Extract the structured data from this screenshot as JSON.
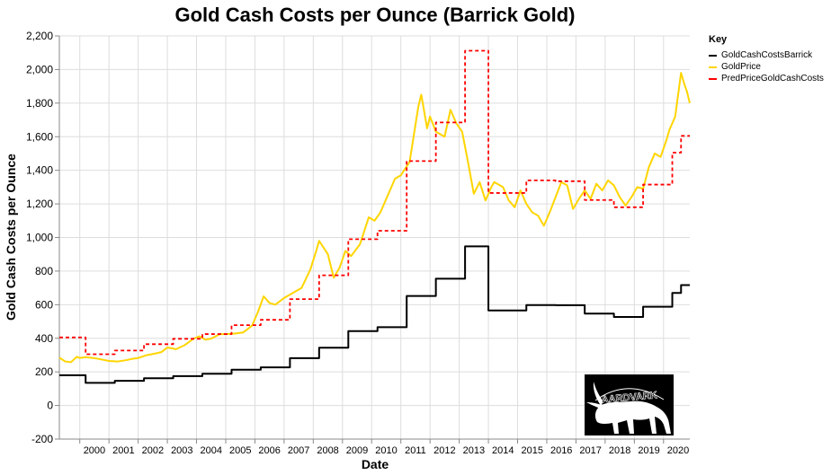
{
  "chart_data": {
    "type": "line",
    "title": "Gold Cash Costs per Ounce (Barrick Gold)",
    "xlabel": "Date",
    "ylabel": "Gold Cash Costs per Ounce",
    "ylim": [
      -200,
      2200
    ],
    "xlim": [
      1999.3,
      2020.9
    ],
    "x_ticks": [
      "2000",
      "2001",
      "2002",
      "2003",
      "2004",
      "2005",
      "2006",
      "2007",
      "2008",
      "2009",
      "2010",
      "2011",
      "2012",
      "2013",
      "2014",
      "2015",
      "2016",
      "2017",
      "2018",
      "2019",
      "2020"
    ],
    "y_ticks": [
      -200,
      0,
      200,
      400,
      600,
      800,
      1000,
      1200,
      1400,
      1600,
      1800,
      2000,
      2200
    ],
    "y_tick_labels": [
      "-200",
      "0",
      "200",
      "400",
      "600",
      "800",
      "1,000",
      "1,200",
      "1,400",
      "1,600",
      "1,800",
      "2,000",
      "2,200"
    ],
    "grid": true,
    "legend": {
      "title": "Key",
      "position": "right"
    },
    "series": [
      {
        "name": "GoldCashCostsBarrick",
        "color": "#000000",
        "style": "step",
        "points": [
          [
            1999.3,
            180
          ],
          [
            2000.2,
            135
          ],
          [
            2001.2,
            147
          ],
          [
            2002.2,
            162
          ],
          [
            2003.2,
            175
          ],
          [
            2004.2,
            189
          ],
          [
            2005.2,
            213
          ],
          [
            2006.2,
            227
          ],
          [
            2007.2,
            282
          ],
          [
            2008.2,
            344
          ],
          [
            2009.2,
            443
          ],
          [
            2010.2,
            466
          ],
          [
            2011.2,
            652
          ],
          [
            2012.2,
            755
          ],
          [
            2013.2,
            947
          ],
          [
            2014.0,
            566
          ],
          [
            2015.3,
            598
          ],
          [
            2016.3,
            597
          ],
          [
            2017.3,
            547
          ],
          [
            2018.3,
            527
          ],
          [
            2019.3,
            588
          ],
          [
            2020.3,
            670
          ],
          [
            2020.6,
            717
          ],
          [
            2020.9,
            717
          ]
        ]
      },
      {
        "name": "GoldPrice",
        "color": "#ffd500",
        "style": "line",
        "points": [
          [
            1999.3,
            285
          ],
          [
            1999.5,
            262
          ],
          [
            1999.7,
            258
          ],
          [
            1999.9,
            290
          ],
          [
            2000.0,
            283
          ],
          [
            2000.2,
            288
          ],
          [
            2000.5,
            282
          ],
          [
            2000.8,
            272
          ],
          [
            2001.0,
            265
          ],
          [
            2001.3,
            262
          ],
          [
            2001.6,
            270
          ],
          [
            2001.8,
            278
          ],
          [
            2002.0,
            283
          ],
          [
            2002.3,
            300
          ],
          [
            2002.6,
            310
          ],
          [
            2002.8,
            318
          ],
          [
            2003.0,
            345
          ],
          [
            2003.3,
            335
          ],
          [
            2003.6,
            360
          ],
          [
            2003.9,
            398
          ],
          [
            2004.1,
            412
          ],
          [
            2004.3,
            392
          ],
          [
            2004.5,
            398
          ],
          [
            2004.8,
            425
          ],
          [
            2005.0,
            425
          ],
          [
            2005.3,
            428
          ],
          [
            2005.6,
            435
          ],
          [
            2005.9,
            475
          ],
          [
            2006.1,
            555
          ],
          [
            2006.3,
            650
          ],
          [
            2006.5,
            610
          ],
          [
            2006.7,
            600
          ],
          [
            2007.0,
            640
          ],
          [
            2007.3,
            670
          ],
          [
            2007.6,
            700
          ],
          [
            2007.9,
            810
          ],
          [
            2008.1,
            920
          ],
          [
            2008.2,
            980
          ],
          [
            2008.5,
            900
          ],
          [
            2008.7,
            760
          ],
          [
            2008.9,
            820
          ],
          [
            2009.1,
            920
          ],
          [
            2009.3,
            890
          ],
          [
            2009.6,
            960
          ],
          [
            2009.9,
            1120
          ],
          [
            2010.1,
            1100
          ],
          [
            2010.3,
            1150
          ],
          [
            2010.5,
            1230
          ],
          [
            2010.8,
            1350
          ],
          [
            2011.0,
            1370
          ],
          [
            2011.3,
            1450
          ],
          [
            2011.6,
            1780
          ],
          [
            2011.7,
            1850
          ],
          [
            2011.9,
            1650
          ],
          [
            2012.0,
            1720
          ],
          [
            2012.2,
            1630
          ],
          [
            2012.5,
            1600
          ],
          [
            2012.7,
            1760
          ],
          [
            2012.9,
            1680
          ],
          [
            2013.1,
            1630
          ],
          [
            2013.3,
            1450
          ],
          [
            2013.5,
            1260
          ],
          [
            2013.7,
            1330
          ],
          [
            2013.9,
            1220
          ],
          [
            2014.1,
            1300
          ],
          [
            2014.2,
            1330
          ],
          [
            2014.5,
            1300
          ],
          [
            2014.7,
            1220
          ],
          [
            2014.9,
            1180
          ],
          [
            2015.1,
            1280
          ],
          [
            2015.3,
            1200
          ],
          [
            2015.5,
            1150
          ],
          [
            2015.7,
            1130
          ],
          [
            2015.9,
            1070
          ],
          [
            2016.1,
            1150
          ],
          [
            2016.3,
            1240
          ],
          [
            2016.5,
            1330
          ],
          [
            2016.7,
            1310
          ],
          [
            2016.9,
            1170
          ],
          [
            2017.1,
            1230
          ],
          [
            2017.3,
            1280
          ],
          [
            2017.5,
            1230
          ],
          [
            2017.7,
            1320
          ],
          [
            2017.9,
            1280
          ],
          [
            2018.1,
            1340
          ],
          [
            2018.3,
            1310
          ],
          [
            2018.5,
            1240
          ],
          [
            2018.7,
            1190
          ],
          [
            2018.9,
            1240
          ],
          [
            2019.1,
            1300
          ],
          [
            2019.3,
            1290
          ],
          [
            2019.5,
            1420
          ],
          [
            2019.7,
            1500
          ],
          [
            2019.9,
            1480
          ],
          [
            2020.1,
            1580
          ],
          [
            2020.2,
            1640
          ],
          [
            2020.4,
            1720
          ],
          [
            2020.6,
            1980
          ],
          [
            2020.7,
            1920
          ],
          [
            2020.8,
            1870
          ],
          [
            2020.9,
            1800
          ]
        ]
      },
      {
        "name": "PredPriceGoldCashCosts",
        "color": "#ff0000",
        "style": "step-dashed",
        "points": [
          [
            1999.3,
            405
          ],
          [
            2000.2,
            305
          ],
          [
            2001.2,
            327
          ],
          [
            2002.2,
            365
          ],
          [
            2003.2,
            397
          ],
          [
            2004.2,
            425
          ],
          [
            2005.2,
            478
          ],
          [
            2006.2,
            510
          ],
          [
            2007.2,
            633
          ],
          [
            2008.2,
            775
          ],
          [
            2009.2,
            990
          ],
          [
            2010.2,
            1040
          ],
          [
            2011.2,
            1455
          ],
          [
            2012.2,
            1685
          ],
          [
            2013.2,
            2112
          ],
          [
            2014.0,
            1265
          ],
          [
            2015.3,
            1340
          ],
          [
            2016.3,
            1335
          ],
          [
            2017.3,
            1223
          ],
          [
            2018.3,
            1180
          ],
          [
            2019.3,
            1315
          ],
          [
            2020.3,
            1505
          ],
          [
            2020.6,
            1605
          ],
          [
            2020.9,
            1605
          ]
        ]
      }
    ]
  },
  "watermark": {
    "text": "AARDVARK"
  }
}
